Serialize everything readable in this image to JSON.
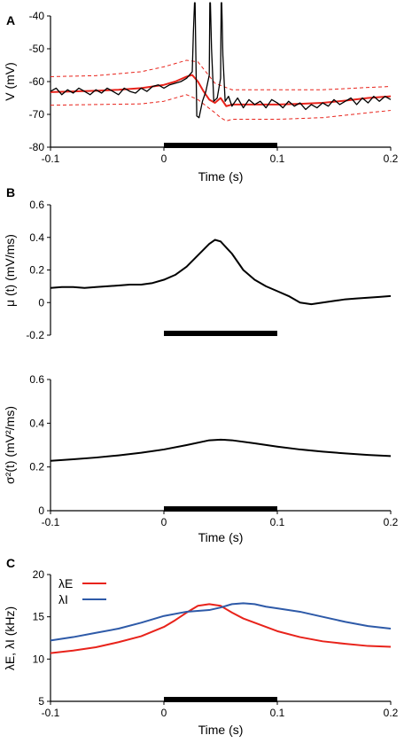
{
  "panel_letters": [
    "A",
    "B",
    "C"
  ],
  "chart_data": [
    {
      "id": "A",
      "type": "line",
      "xlabel": "Time (s)",
      "ylabel": "V (mV)",
      "xlim": [
        -0.1,
        0.2
      ],
      "ylim": [
        -80,
        -40
      ],
      "xticks": [
        "-0.1",
        "0",
        "0.1",
        "0.2"
      ],
      "yticks": [
        "-40",
        "-50",
        "-60",
        "-70",
        "-80"
      ],
      "stimulus_bar": [
        0,
        0.1
      ],
      "colors": {
        "trace": "#000000",
        "mean": "#e8231b",
        "band": "#e8231b",
        "bar": "#000000"
      },
      "series": [
        {
          "role": "mean",
          "style": "solid",
          "x": [
            -0.1,
            -0.08,
            -0.06,
            -0.04,
            -0.02,
            0.0,
            0.01,
            0.02,
            0.025,
            0.03,
            0.035,
            0.04,
            0.045,
            0.05,
            0.055,
            0.06,
            0.08,
            0.1,
            0.12,
            0.14,
            0.16,
            0.18,
            0.2
          ],
          "y": [
            -63.2,
            -63.0,
            -62.8,
            -62.5,
            -62.0,
            -61.0,
            -60.0,
            -58.5,
            -58.0,
            -60.0,
            -63.0,
            -65.5,
            -66.5,
            -65.0,
            -67.5,
            -67.0,
            -67.0,
            -67.0,
            -66.8,
            -66.5,
            -65.8,
            -65.0,
            -64.5
          ]
        },
        {
          "role": "upper-band",
          "style": "dashed",
          "x": [
            -0.1,
            -0.06,
            -0.02,
            0.0,
            0.02,
            0.03,
            0.045,
            0.06,
            0.1,
            0.14,
            0.18,
            0.2
          ],
          "y": [
            -58.5,
            -58.2,
            -57.0,
            -55.5,
            -53.5,
            -54.0,
            -60.5,
            -62.5,
            -62.5,
            -62.5,
            -61.8,
            -61.5
          ]
        },
        {
          "role": "lower-band",
          "style": "dashed",
          "x": [
            -0.1,
            -0.06,
            -0.02,
            0.0,
            0.02,
            0.03,
            0.045,
            0.05,
            0.055,
            0.06,
            0.1,
            0.14,
            0.18,
            0.2
          ],
          "y": [
            -67.2,
            -67.0,
            -66.8,
            -66.0,
            -64.0,
            -65.5,
            -69.5,
            -71.0,
            -72.0,
            -71.5,
            -71.5,
            -71.0,
            -69.5,
            -68.8
          ]
        },
        {
          "role": "membrane-trace",
          "style": "solid",
          "x": [
            -0.1,
            -0.095,
            -0.09,
            -0.085,
            -0.08,
            -0.075,
            -0.07,
            -0.065,
            -0.06,
            -0.055,
            -0.05,
            -0.045,
            -0.04,
            -0.035,
            -0.03,
            -0.025,
            -0.02,
            -0.015,
            -0.01,
            -0.005,
            0.0,
            0.005,
            0.01,
            0.015,
            0.02,
            0.025,
            0.026,
            0.027,
            0.0275,
            0.028,
            0.029,
            0.031,
            0.034,
            0.037,
            0.04,
            0.0405,
            0.041,
            0.042,
            0.044,
            0.047,
            0.05,
            0.0505,
            0.051,
            0.052,
            0.054,
            0.057,
            0.06,
            0.065,
            0.07,
            0.075,
            0.08,
            0.085,
            0.09,
            0.095,
            0.1,
            0.105,
            0.11,
            0.115,
            0.12,
            0.125,
            0.13,
            0.135,
            0.14,
            0.145,
            0.15,
            0.155,
            0.16,
            0.165,
            0.17,
            0.175,
            0.18,
            0.185,
            0.19,
            0.195,
            0.2
          ],
          "y": [
            -63.0,
            -62.0,
            -64.0,
            -62.5,
            -63.5,
            -62.0,
            -63.0,
            -64.0,
            -62.5,
            -63.5,
            -62.0,
            -63.0,
            -64.0,
            -62.0,
            -63.0,
            -63.5,
            -62.0,
            -63.0,
            -61.5,
            -61.0,
            -62.0,
            -61.0,
            -60.5,
            -60.0,
            -59.0,
            -57.0,
            -45.0,
            -36.0,
            -36.0,
            -48.0,
            -70.5,
            -71.0,
            -66.0,
            -63.0,
            -58.0,
            -36.0,
            -36.0,
            -50.0,
            -66.0,
            -65.0,
            -59.0,
            -36.0,
            -36.0,
            -52.0,
            -66.0,
            -64.5,
            -67.5,
            -65.0,
            -68.0,
            -65.5,
            -67.0,
            -66.0,
            -68.0,
            -65.5,
            -66.5,
            -68.0,
            -66.0,
            -67.5,
            -66.5,
            -68.5,
            -67.0,
            -68.0,
            -66.5,
            -67.5,
            -65.5,
            -67.0,
            -66.0,
            -65.0,
            -67.0,
            -65.0,
            -66.5,
            -64.5,
            -66.0,
            -64.5,
            -65.5
          ]
        }
      ]
    },
    {
      "id": "B-mu",
      "type": "line",
      "xlabel": "",
      "ylabel": "μ (t) (mV/ms)",
      "xlim": [
        -0.1,
        0.2
      ],
      "ylim": [
        -0.2,
        0.6
      ],
      "xticks": [],
      "yticks": [
        "0.6",
        "0.4",
        "0.2",
        "0",
        "-0.2"
      ],
      "stimulus_bar": [
        0,
        0.1
      ],
      "colors": {
        "trace": "#000000",
        "bar": "#000000"
      },
      "series": [
        {
          "role": "trace",
          "x": [
            -0.1,
            -0.09,
            -0.08,
            -0.07,
            -0.06,
            -0.05,
            -0.04,
            -0.03,
            -0.02,
            -0.01,
            0.0,
            0.01,
            0.02,
            0.03,
            0.04,
            0.045,
            0.05,
            0.06,
            0.07,
            0.08,
            0.09,
            0.1,
            0.11,
            0.12,
            0.13,
            0.14,
            0.15,
            0.16,
            0.17,
            0.18,
            0.19,
            0.2
          ],
          "y": [
            0.09,
            0.095,
            0.095,
            0.09,
            0.095,
            0.1,
            0.105,
            0.11,
            0.11,
            0.12,
            0.14,
            0.17,
            0.22,
            0.29,
            0.36,
            0.385,
            0.375,
            0.3,
            0.2,
            0.14,
            0.1,
            0.07,
            0.04,
            0.0,
            -0.01,
            0.0,
            0.01,
            0.02,
            0.025,
            0.03,
            0.035,
            0.04
          ]
        }
      ]
    },
    {
      "id": "B-sigma",
      "type": "line",
      "xlabel": "Time (s)",
      "ylabel": "σ²(t) (mV²/ms)",
      "xlim": [
        -0.1,
        0.2
      ],
      "ylim": [
        0,
        0.6
      ],
      "xticks": [
        "-0.1",
        "0",
        "0.1",
        "0.2"
      ],
      "yticks": [
        "0.6",
        "0.4",
        "0.2",
        "0"
      ],
      "stimulus_bar": [
        0,
        0.1
      ],
      "colors": {
        "trace": "#000000",
        "bar": "#000000"
      },
      "series": [
        {
          "role": "trace",
          "x": [
            -0.1,
            -0.08,
            -0.06,
            -0.04,
            -0.02,
            0.0,
            0.02,
            0.04,
            0.05,
            0.06,
            0.08,
            0.1,
            0.12,
            0.14,
            0.16,
            0.18,
            0.2
          ],
          "y": [
            0.228,
            0.235,
            0.243,
            0.253,
            0.265,
            0.28,
            0.3,
            0.322,
            0.325,
            0.322,
            0.308,
            0.293,
            0.28,
            0.27,
            0.262,
            0.255,
            0.25
          ]
        }
      ]
    },
    {
      "id": "C",
      "type": "line",
      "xlabel": "Time (s)",
      "ylabel": "λE, λI (kHz)",
      "xlim": [
        -0.1,
        0.2
      ],
      "ylim": [
        5,
        20
      ],
      "xticks": [
        "-0.1",
        "0",
        "0.1",
        "0.2"
      ],
      "yticks": [
        "20",
        "15",
        "10",
        "5"
      ],
      "stimulus_bar": [
        0,
        0.1
      ],
      "colors": {
        "bar": "#000000"
      },
      "legend": {
        "placement": "top-left"
      },
      "series": [
        {
          "name": "λE",
          "color": "#e8231b",
          "x": [
            -0.1,
            -0.08,
            -0.06,
            -0.04,
            -0.02,
            0.0,
            0.01,
            0.02,
            0.03,
            0.04,
            0.05,
            0.06,
            0.07,
            0.08,
            0.1,
            0.12,
            0.14,
            0.16,
            0.18,
            0.2
          ],
          "y": [
            10.7,
            11.0,
            11.4,
            12.0,
            12.7,
            13.8,
            14.6,
            15.5,
            16.3,
            16.5,
            16.3,
            15.5,
            14.8,
            14.3,
            13.3,
            12.6,
            12.1,
            11.8,
            11.55,
            11.45
          ]
        },
        {
          "name": "λI",
          "color": "#2e5aa8",
          "x": [
            -0.1,
            -0.08,
            -0.06,
            -0.04,
            -0.02,
            0.0,
            0.02,
            0.04,
            0.05,
            0.06,
            0.07,
            0.08,
            0.09,
            0.1,
            0.12,
            0.14,
            0.16,
            0.18,
            0.2
          ],
          "y": [
            12.2,
            12.6,
            13.1,
            13.6,
            14.3,
            15.1,
            15.6,
            15.8,
            16.1,
            16.5,
            16.6,
            16.5,
            16.2,
            16.0,
            15.6,
            15.0,
            14.4,
            13.9,
            13.6
          ]
        }
      ]
    }
  ]
}
